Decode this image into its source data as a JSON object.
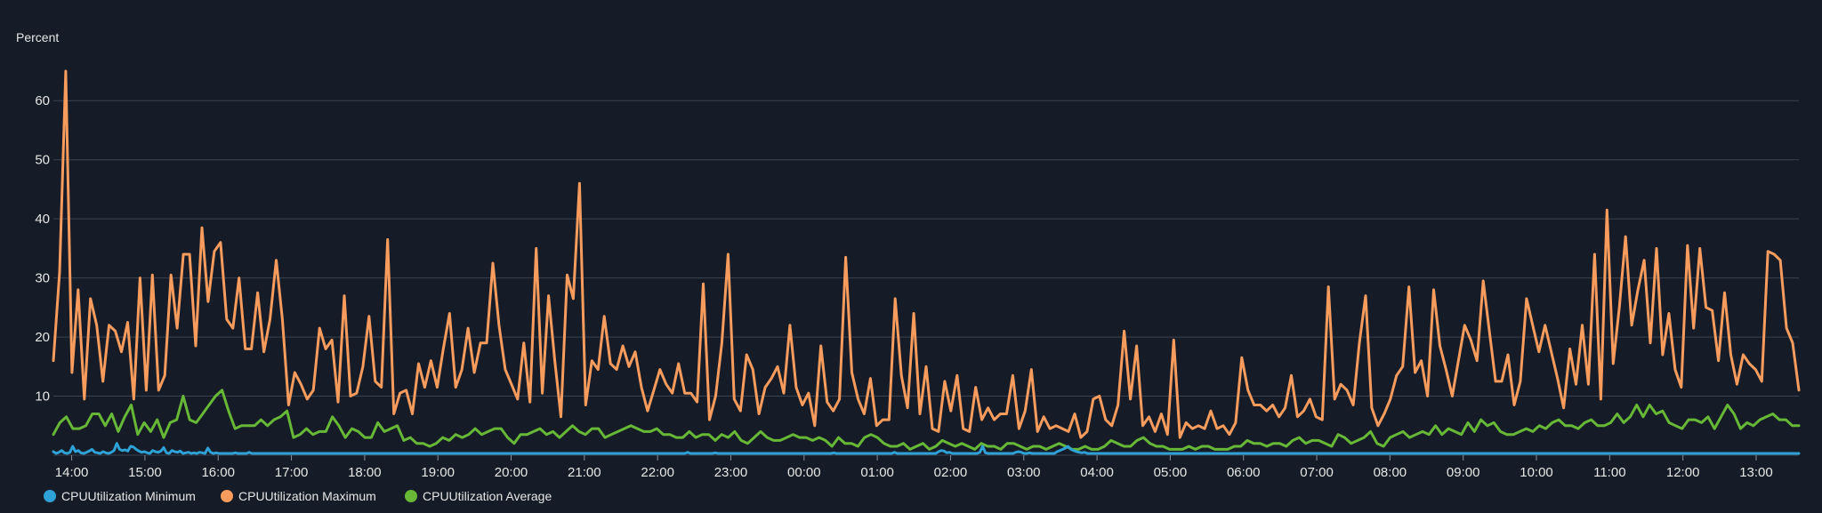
{
  "chart_data": {
    "type": "line",
    "ylabel": "Percent",
    "ylim": [
      0,
      65
    ],
    "yticks": [
      10,
      20,
      30,
      40,
      50,
      60
    ],
    "grid": "horizontal",
    "legend_position": "bottom-left",
    "x_ticks": [
      "14:00",
      "15:00",
      "16:00",
      "17:00",
      "18:00",
      "19:00",
      "20:00",
      "21:00",
      "22:00",
      "23:00",
      "00:00",
      "01:00",
      "02:00",
      "03:00",
      "04:00",
      "05:00",
      "06:00",
      "07:00",
      "08:00",
      "09:00",
      "10:00",
      "11:00",
      "12:00",
      "13:00"
    ],
    "x_start": "13:45",
    "x_end": "13:35",
    "series": [
      {
        "name": "CPUUtilization Minimum",
        "color": "#2ea1d6",
        "values": [
          0.6,
          0.3,
          0.5,
          0.8,
          0.4,
          0.3,
          0.5,
          1.5,
          0.6,
          0.8,
          0.4,
          0.3,
          0.5,
          0.7,
          1.0,
          0.5,
          0.4,
          0.3,
          0.6,
          0.4,
          0.3,
          0.5,
          0.8,
          2.0,
          1.0,
          0.8,
          0.9,
          0.7,
          1.5,
          1.4,
          1.0,
          0.7,
          0.5,
          0.6,
          0.4,
          0.3,
          0.8,
          0.6,
          0.5,
          0.7,
          1.3,
          0.4,
          0.3,
          0.8,
          0.6,
          0.5,
          0.7,
          0.3,
          0.4,
          0.5,
          0.3,
          0.4,
          0.3,
          0.5,
          0.4,
          0.3,
          1.2,
          0.5,
          0.3,
          0.4,
          0.3,
          0.3,
          0.3,
          0.3,
          0.3,
          0.3,
          0.4,
          0.3,
          0.3,
          0.3,
          0.3,
          0.5,
          0.3,
          0.3,
          0.3,
          0.3,
          0.3,
          0.3,
          0.3,
          0.3,
          0.3,
          0.3,
          0.3,
          0.3,
          0.3,
          0.3,
          0.3,
          0.3,
          0.3,
          0.3,
          0.3,
          0.3,
          0.3,
          0.3,
          0.3,
          0.3,
          0.3,
          0.3,
          0.3,
          0.3,
          0.3,
          0.3,
          0.3,
          0.3,
          0.3,
          0.3,
          0.3,
          0.3,
          0.3,
          0.3,
          0.3,
          0.3,
          0.3,
          0.3,
          0.3,
          0.3,
          0.3,
          0.3,
          0.3,
          0.3,
          0.3,
          0.3,
          0.3,
          0.3,
          0.3,
          0.3,
          0.3,
          0.3,
          0.3,
          0.3,
          0.3,
          0.3,
          0.3,
          0.3,
          0.3,
          0.3,
          0.3,
          0.3,
          0.3,
          0.3,
          0.3,
          0.3,
          0.3,
          0.3,
          0.3,
          0.3,
          0.3,
          0.3,
          0.3,
          0.3,
          0.3,
          0.3,
          0.3,
          0.3,
          0.3,
          0.3,
          0.3,
          0.3,
          0.3,
          0.3,
          0.3,
          0.3,
          0.3,
          0.3,
          0.3,
          0.3,
          0.3,
          0.3,
          0.3,
          0.3,
          0.3,
          0.3,
          0.3,
          0.3,
          0.3,
          0.3,
          0.3,
          0.3,
          0.3,
          0.3,
          0.3,
          0.3,
          0.3,
          0.3,
          0.3,
          0.3,
          0.3,
          0.3,
          0.3,
          0.3,
          0.3,
          0.3,
          0.3,
          0.3,
          0.3,
          0.3,
          0.3,
          0.3,
          0.3,
          0.3,
          0.3,
          0.3,
          0.3,
          0.3,
          0.3,
          0.3,
          0.3,
          0.3,
          0.3,
          0.3,
          0.3,
          0.3,
          0.3,
          0.3,
          0.3,
          0.3,
          0.3,
          0.3,
          0.3,
          0.3,
          0.3,
          0.3,
          0.3,
          0.3,
          0.3,
          0.3,
          0.3,
          0.3,
          0.3,
          0.3,
          0.5,
          0.3,
          0.3,
          0.3,
          0.3,
          0.3,
          0.3,
          0.3,
          0.3,
          0.3,
          0.4,
          0.3,
          0.3,
          0.3,
          0.3,
          0.3,
          0.3,
          0.3,
          0.3,
          0.3,
          0.3,
          0.3,
          0.3,
          0.3,
          0.3,
          0.3,
          0.3,
          0.3,
          0.3,
          0.3,
          0.3,
          0.3,
          0.3,
          0.3,
          0.3,
          0.3,
          0.3,
          0.3,
          0.3,
          0.3,
          0.3,
          0.3,
          0.3,
          0.3,
          0.3,
          0.3,
          0.3,
          0.3,
          0.3,
          0.3,
          0.3,
          0.3,
          0.3,
          0.4,
          0.3,
          0.3,
          0.3,
          0.3,
          0.3,
          0.3,
          0.3,
          0.3,
          0.3,
          0.3,
          0.3,
          0.3,
          0.3,
          0.3,
          0.3,
          0.3,
          0.3,
          0.3,
          0.3,
          0.3,
          0.3,
          0.5,
          0.3,
          0.3,
          0.3,
          0.3,
          0.3,
          0.3,
          0.3,
          0.3,
          0.3,
          0.3,
          0.3,
          0.3,
          0.3,
          0.3,
          0.3,
          0.6,
          0.8,
          0.7,
          0.4,
          0.5,
          0.3,
          0.3,
          0.3,
          0.3,
          0.3,
          0.3,
          0.3,
          0.3,
          0.3,
          0.3,
          0.5,
          1.5,
          0.4,
          0.3,
          0.3,
          0.3,
          0.3,
          0.3,
          0.3,
          0.3,
          0.3,
          0.3,
          0.3,
          0.5,
          0.6,
          0.5,
          0.3,
          0.3,
          0.4,
          0.3,
          0.3,
          0.3,
          0.3,
          0.3,
          0.3,
          0.3,
          0.3,
          0.3,
          0.6,
          0.8,
          1.0,
          1.2,
          1.5,
          1.0,
          0.8,
          0.6,
          0.5,
          0.4,
          0.5,
          0.3,
          0.3,
          0.3,
          0.3,
          0.3,
          0.3,
          0.3,
          0.3,
          0.3,
          0.3,
          0.3,
          0.3,
          0.3,
          0.3,
          0.3,
          0.3,
          0.3,
          0.3,
          0.3,
          0.3,
          0.3,
          0.3,
          0.3,
          0.3,
          0.3,
          0.3,
          0.3,
          0.3,
          0.3,
          0.3,
          0.3,
          0.3,
          0.3,
          0.3,
          0.3,
          0.3,
          0.3,
          0.3,
          0.3,
          0.3,
          0.3,
          0.3,
          0.3,
          0.3,
          0.3,
          0.3,
          0.3,
          0.3,
          0.3,
          0.3,
          0.3,
          0.3,
          0.3,
          0.3,
          0.3,
          0.3,
          0.3,
          0.3,
          0.3,
          0.3,
          0.3,
          0.3,
          0.3,
          0.3,
          0.3,
          0.3,
          0.3,
          0.3,
          0.3,
          0.3,
          0.3,
          0.3,
          0.3,
          0.3,
          0.3,
          0.3,
          0.3,
          0.3,
          0.3,
          0.3,
          0.3,
          0.3,
          0.3,
          0.3,
          0.3,
          0.3,
          0.3,
          0.3,
          0.3,
          0.3,
          0.3,
          0.3,
          0.3,
          0.3,
          0.3,
          0.3,
          0.3,
          0.3,
          0.3,
          0.3,
          0.3,
          0.3,
          0.3,
          0.3,
          0.3,
          0.3,
          0.3,
          0.3,
          0.3,
          0.3,
          0.3,
          0.3,
          0.3,
          0.3,
          0.3,
          0.3,
          0.3,
          0.3,
          0.3,
          0.3,
          0.3,
          0.3,
          0.3,
          0.3,
          0.3,
          0.3,
          0.3,
          0.3,
          0.3,
          0.3,
          0.3,
          0.3,
          0.3,
          0.3,
          0.3,
          0.3,
          0.3,
          0.3,
          0.3,
          0.3,
          0.3,
          0.3,
          0.3,
          0.3,
          0.3,
          0.3,
          0.3,
          0.3,
          0.3,
          0.3,
          0.3,
          0.3,
          0.3,
          0.3,
          0.3,
          0.3,
          0.3,
          0.3,
          0.3,
          0.3,
          0.3,
          0.3,
          0.3,
          0.3,
          0.3,
          0.3,
          0.3,
          0.3,
          0.3,
          0.3,
          0.3,
          0.3,
          0.3,
          0.3,
          0.3,
          0.3,
          0.3,
          0.3,
          0.3,
          0.3,
          0.3,
          0.3,
          0.3,
          0.3,
          0.3,
          0.3,
          0.3,
          0.3,
          0.3,
          0.3,
          0.3,
          0.3,
          0.3,
          0.3,
          0.3,
          0.3,
          0.3,
          0.3,
          0.3,
          0.3,
          0.3,
          0.3,
          0.3,
          0.3,
          0.3,
          0.3,
          0.3,
          0.3,
          0.3,
          0.3,
          0.3,
          0.3,
          0.3,
          0.3,
          0.3,
          0.3,
          0.3,
          0.3,
          0.3,
          0.3,
          0.3,
          0.3,
          0.3,
          0.3,
          0.3,
          0.3,
          0.3,
          0.3,
          0.3,
          0.3,
          0.3,
          0.3,
          0.3,
          0.3,
          0.3,
          0.3,
          0.3,
          0.3,
          0.3,
          0.3,
          0.3,
          0.3,
          0.3,
          0.3,
          0.3,
          0.3,
          0.3,
          0.3,
          0.3,
          0.3,
          0.3,
          0.3,
          0.3,
          0.3,
          0.3,
          0.3,
          0.3,
          0.3,
          0.3
        ]
      },
      {
        "name": "CPUUtilization Maximum",
        "color": "#f79c5d",
        "values": [
          16,
          31,
          65,
          14,
          28,
          9.5,
          26.5,
          22,
          12.5,
          22,
          21,
          17.5,
          22.5,
          9.5,
          30,
          11,
          30.5,
          11,
          13.5,
          30.5,
          21.5,
          34,
          34,
          18.5,
          38.5,
          26,
          34.5,
          36,
          23,
          21.5,
          30,
          18,
          18,
          27.5,
          17.5,
          23,
          33,
          23,
          8.5,
          14,
          12,
          9.5,
          11,
          21.5,
          18,
          19.5,
          9,
          27,
          10,
          10.5,
          15,
          23.5,
          12.5,
          11.5,
          36.5,
          7,
          10.5,
          11,
          7,
          15.5,
          11.5,
          16,
          11.5,
          18,
          24,
          11.5,
          14.5,
          21.5,
          14,
          19,
          19,
          32.5,
          22,
          14.5,
          12,
          9.5,
          19,
          9,
          35,
          10.5,
          27,
          16,
          6.5,
          30.5,
          26.5,
          46,
          8.5,
          16,
          14.5,
          23.5,
          15.5,
          14.5,
          18.5,
          15,
          17.5,
          11.5,
          7.5,
          11,
          14.5,
          12,
          10.5,
          15.5,
          10.5,
          10.5,
          9,
          29,
          6,
          10,
          19,
          34,
          9.5,
          7.5,
          17,
          14.5,
          7,
          11.5,
          13,
          15,
          10.5,
          22,
          11.5,
          8.5,
          10.5,
          5,
          18.5,
          9,
          7.5,
          9.5,
          33.5,
          14,
          9.5,
          7,
          13,
          5,
          6,
          6,
          26.5,
          13.5,
          8,
          24,
          7,
          15,
          4.5,
          4,
          12.5,
          7.5,
          13.5,
          4.5,
          4,
          11.5,
          6,
          8,
          6,
          7,
          7,
          13.5,
          4.5,
          7.5,
          14.5,
          4,
          6.5,
          4.5,
          5,
          4.5,
          4,
          7,
          3,
          4,
          9.5,
          10,
          6,
          5,
          8.5,
          21,
          9.5,
          18.5,
          5,
          6.5,
          4,
          7,
          3.5,
          19.5,
          3,
          5.5,
          4.5,
          5,
          4.5,
          7.5,
          4.5,
          5,
          3.5,
          5.5,
          16.5,
          11,
          8.5,
          8.5,
          7.5,
          8.5,
          6.5,
          8,
          13.5,
          6.5,
          7.5,
          9.5,
          6.5,
          6,
          28.5,
          9.5,
          12,
          11,
          8.5,
          19,
          27,
          8,
          5,
          7,
          9.5,
          13.5,
          15,
          28.5,
          14,
          16,
          10,
          28,
          18.5,
          14.5,
          10,
          16,
          22,
          19.5,
          16,
          29.5,
          21,
          12.5,
          12.5,
          17,
          8.5,
          12.5,
          26.5,
          22,
          17.5,
          22,
          17.5,
          13,
          8,
          18,
          12,
          22,
          12,
          34,
          9.5,
          41.5,
          15.5,
          25,
          37,
          22,
          28,
          33,
          19,
          35,
          17,
          24,
          14.5,
          11.5,
          35.5,
          21.5,
          35,
          25,
          24.5,
          16,
          27.5,
          17,
          12,
          17,
          15.5,
          14.5,
          12.5,
          34.5,
          34,
          33,
          21.5,
          19,
          11
        ]
      },
      {
        "name": "CPUUtilization Average",
        "color": "#67b836",
        "values": [
          3.5,
          5.5,
          6.5,
          4.5,
          4.5,
          5,
          7,
          7,
          5,
          7,
          4,
          6.5,
          8.5,
          3.5,
          5.5,
          4,
          6,
          3,
          5.5,
          6,
          10,
          6,
          5.5,
          7,
          8.5,
          10,
          11,
          7.5,
          4.5,
          5,
          5,
          5,
          6,
          5,
          6,
          6.5,
          7.5,
          3,
          3.5,
          4.5,
          3.5,
          4,
          4,
          6.5,
          5,
          3,
          4.5,
          4,
          3,
          3,
          5.5,
          4,
          4.5,
          5,
          2.5,
          3,
          2,
          2,
          1.5,
          2,
          3,
          2.5,
          3.5,
          3,
          3.5,
          4.5,
          3.5,
          4,
          4.5,
          4.5,
          3,
          2,
          3.5,
          3.5,
          4,
          4.5,
          3.5,
          4,
          3,
          4,
          5,
          4,
          3.5,
          4.5,
          4.5,
          3,
          3.5,
          4,
          4.5,
          5,
          4.5,
          4,
          4,
          4.5,
          3.5,
          3.5,
          3,
          3,
          4,
          3,
          3.5,
          3.5,
          2.5,
          3.5,
          3,
          4,
          2.5,
          2,
          3,
          4,
          3,
          2.5,
          2.5,
          3,
          3.5,
          3,
          3,
          2.5,
          3,
          2.5,
          1.5,
          3,
          2,
          2,
          1.5,
          3,
          3.5,
          3,
          2,
          1.5,
          1.5,
          2,
          1,
          1.5,
          2,
          1,
          1.5,
          2.5,
          2,
          1.5,
          2,
          1.5,
          1,
          2,
          1.5,
          1.5,
          1,
          2,
          2,
          1.5,
          1,
          1.5,
          1.5,
          1,
          1.5,
          2,
          1.5,
          1,
          1,
          1.5,
          1,
          1,
          1.5,
          2.5,
          2,
          1.5,
          1.5,
          2.5,
          3,
          2,
          1.5,
          1.5,
          1,
          1,
          1,
          1.5,
          1,
          1.5,
          1.5,
          1,
          1,
          1,
          1.5,
          1.5,
          2.5,
          2,
          2,
          1.5,
          2,
          2,
          1.5,
          2.5,
          3,
          2,
          2.5,
          2.5,
          2,
          1.5,
          3.5,
          3,
          2,
          2.5,
          3,
          4,
          2,
          1.5,
          3,
          3.5,
          4,
          3,
          3.5,
          4,
          3.5,
          5,
          3.5,
          4.5,
          4,
          3.5,
          5.5,
          4,
          6,
          5,
          5.5,
          4,
          3.5,
          3.5,
          4,
          4.5,
          4,
          5,
          4.5,
          5.5,
          6,
          5,
          5,
          4.5,
          5.5,
          6,
          5,
          5,
          5.5,
          7,
          5.5,
          6.5,
          8.5,
          6.5,
          8.5,
          7,
          7.5,
          5.5,
          5,
          4.5,
          6,
          6,
          5.5,
          6.5,
          4.5,
          6.5,
          8.5,
          7,
          4.5,
          5.5,
          5,
          6,
          6.5,
          7,
          6,
          6,
          5,
          5
        ]
      }
    ]
  }
}
